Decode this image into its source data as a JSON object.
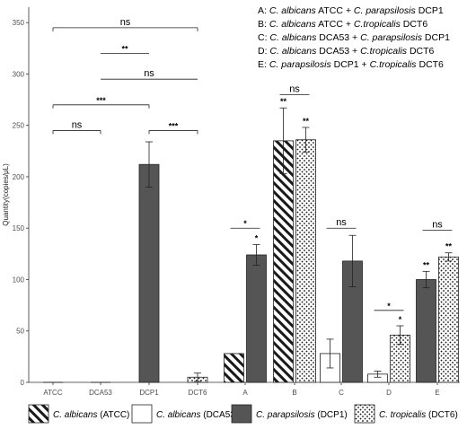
{
  "chart_data": {
    "type": "bar",
    "ylabel": "Quantity(copies/μL)",
    "ylim": [
      0,
      365
    ],
    "yticks": [
      0,
      50,
      100,
      150,
      200,
      250,
      300,
      350
    ],
    "grid": "off",
    "legend_position": "bottom",
    "categories": [
      "ATCC",
      "DCA53",
      "DCP1",
      "DCT6",
      "A",
      "B",
      "C",
      "D",
      "E"
    ],
    "patterns": {
      "ATCC": "hatch",
      "DCA53": "white",
      "DCP1": "dark",
      "DCT6": "dots"
    },
    "bars": [
      {
        "category": "ATCC",
        "offset": 0,
        "series": "ATCC",
        "value": 0,
        "error": 0,
        "star": ""
      },
      {
        "category": "DCA53",
        "offset": 0,
        "series": "DCA53",
        "value": 0,
        "error": 0,
        "star": ""
      },
      {
        "category": "DCP1",
        "offset": 0,
        "series": "DCP1",
        "value": 212,
        "error": 22,
        "star": ""
      },
      {
        "category": "DCT6",
        "offset": 0,
        "series": "DCT6",
        "value": 5,
        "error": 4,
        "star": ""
      },
      {
        "category": "A",
        "offset": -1,
        "series": "ATCC",
        "value": 28,
        "error": 0,
        "star": ""
      },
      {
        "category": "A",
        "offset": 1,
        "series": "DCP1",
        "value": 124,
        "error": 10,
        "star": "*"
      },
      {
        "category": "B",
        "offset": -1,
        "series": "ATCC",
        "value": 235,
        "error": 32,
        "star": "**"
      },
      {
        "category": "B",
        "offset": 1,
        "series": "DCT6",
        "value": 236,
        "error": 12,
        "star": "**"
      },
      {
        "category": "C",
        "offset": -1,
        "series": "DCA53",
        "value": 28,
        "error": 14,
        "star": ""
      },
      {
        "category": "C",
        "offset": 1,
        "series": "DCP1",
        "value": 118,
        "error": 25,
        "star": ""
      },
      {
        "category": "D",
        "offset": -1,
        "series": "DCA53",
        "value": 8,
        "error": 3,
        "star": ""
      },
      {
        "category": "D",
        "offset": 1,
        "series": "DCT6",
        "value": 46,
        "error": 9,
        "star": "*"
      },
      {
        "category": "E",
        "offset": -1,
        "series": "DCP1",
        "value": 100,
        "error": 8,
        "star": "**"
      },
      {
        "category": "E",
        "offset": 1,
        "series": "DCT6",
        "value": 122,
        "error": 4,
        "star": "**"
      }
    ],
    "brackets": [
      {
        "from": "ATCC",
        "to": "DCT6",
        "y": 345,
        "label": "ns",
        "tips": true
      },
      {
        "from": "DCA53",
        "to": "DCP1",
        "y": 320,
        "label": "**",
        "tips": false
      },
      {
        "from": "DCA53",
        "to": "DCT6",
        "y": 295,
        "label": "ns",
        "tips": false
      },
      {
        "from": "ATCC",
        "to": "DCP1",
        "y": 270,
        "label": "***",
        "tips": true
      },
      {
        "from": "ATCC",
        "to": "DCA53",
        "y": 245,
        "label": "ns",
        "tips": true
      },
      {
        "from": "DCP1",
        "to": "DCT6",
        "y": 245,
        "label": "***",
        "tips": true
      },
      {
        "from": "A",
        "to": "A",
        "y": 150,
        "label": "*",
        "tips": false
      },
      {
        "from": "B",
        "to": "B",
        "y": 280,
        "label": "ns",
        "tips": false
      },
      {
        "from": "C",
        "to": "C",
        "y": 150,
        "label": "ns",
        "tips": false
      },
      {
        "from": "D",
        "to": "D",
        "y": 70,
        "label": "*",
        "tips": false
      },
      {
        "from": "E",
        "to": "E",
        "y": 148,
        "label": "ns",
        "tips": false
      }
    ],
    "annotations": [
      {
        "letter": "A: ",
        "parts": [
          {
            "t": "C. albicans",
            "i": true
          },
          {
            "t": " ATCC + ",
            "i": false
          },
          {
            "t": "C. parapsilosis",
            "i": true
          },
          {
            "t": " DCP1",
            "i": false
          }
        ]
      },
      {
        "letter": "B: ",
        "parts": [
          {
            "t": "C. albicans",
            "i": true
          },
          {
            "t": " ATCC + ",
            "i": false
          },
          {
            "t": "C.tropicalis",
            "i": true
          },
          {
            "t": " DCT6",
            "i": false
          }
        ]
      },
      {
        "letter": "C: ",
        "parts": [
          {
            "t": "C. albicans",
            "i": true
          },
          {
            "t": " DCA53 + ",
            "i": false
          },
          {
            "t": "C. parapsilosis",
            "i": true
          },
          {
            "t": " DCP1",
            "i": false
          }
        ]
      },
      {
        "letter": "D: ",
        "parts": [
          {
            "t": "C. albicans",
            "i": true
          },
          {
            "t": " DCA53 + ",
            "i": false
          },
          {
            "t": "C.tropicalis",
            "i": true
          },
          {
            "t": " DCT6",
            "i": false
          }
        ]
      },
      {
        "letter": "E: ",
        "parts": [
          {
            "t": "C. parapsilosis",
            "i": true
          },
          {
            "t": " DCP1 + ",
            "i": false
          },
          {
            "t": "C.tropicalis",
            "i": true
          },
          {
            "t": " DCT6",
            "i": false
          }
        ]
      }
    ],
    "legend": [
      {
        "series": "ATCC",
        "species": "C. albicans",
        "strain": " (ATCC)"
      },
      {
        "series": "DCA53",
        "species": "C. albicans",
        "strain": " (DCA53)"
      },
      {
        "series": "DCP1",
        "species": "C. parapsilosis",
        "strain": " (DCP1)"
      },
      {
        "series": "DCT6",
        "species": "C. tropicalis",
        "strain": " (DCT6)"
      }
    ]
  }
}
